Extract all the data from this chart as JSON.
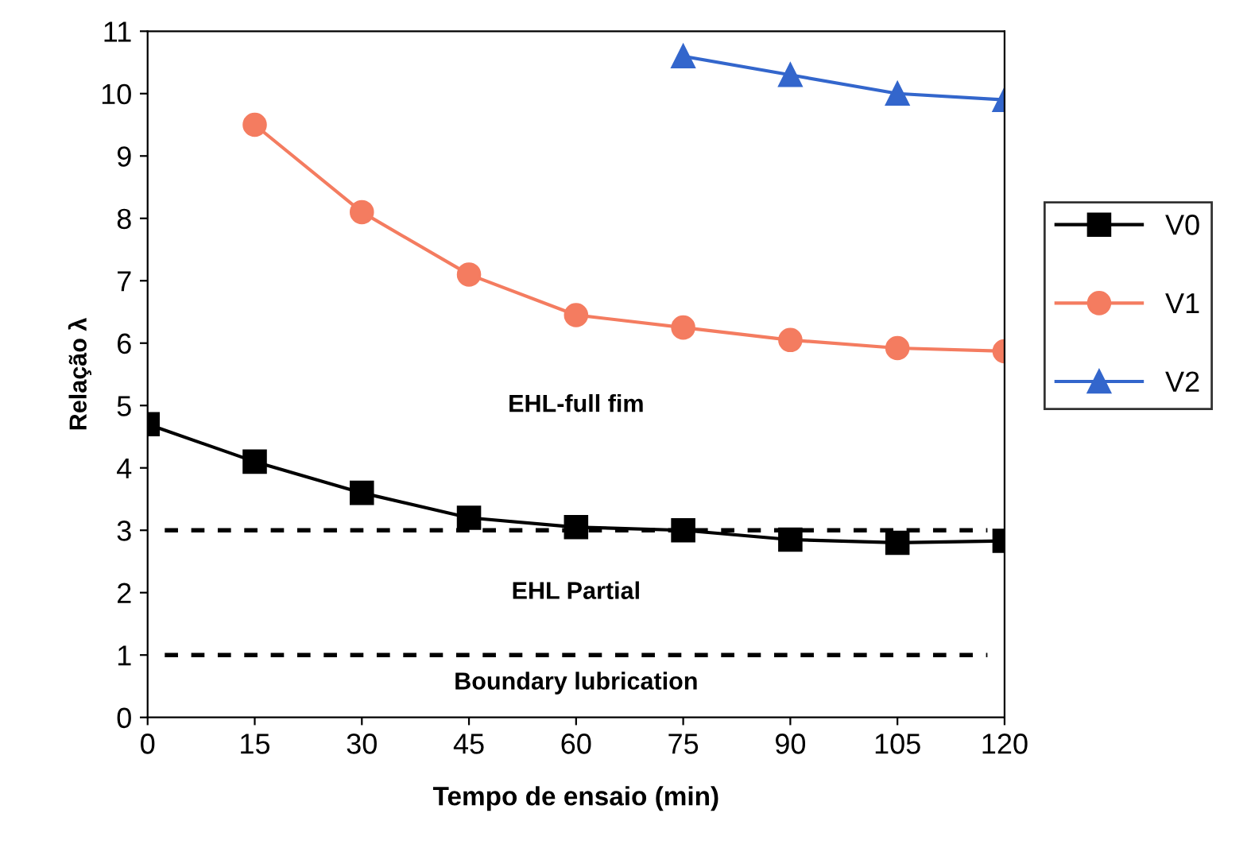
{
  "chart_data": {
    "type": "line",
    "xlabel": "Tempo de ensaio (min)",
    "ylabel": "Relação λ",
    "x": [
      0,
      15,
      30,
      45,
      60,
      75,
      90,
      105,
      120
    ],
    "series": [
      {
        "name": "V0",
        "color": "#000000",
        "marker": "square",
        "values": [
          4.7,
          4.1,
          3.6,
          3.2,
          3.05,
          3.0,
          2.85,
          2.8,
          2.83
        ]
      },
      {
        "name": "V1",
        "color": "#f47c60",
        "marker": "circle",
        "values": [
          null,
          9.5,
          8.1,
          7.1,
          6.45,
          6.25,
          6.05,
          5.92,
          5.87
        ]
      },
      {
        "name": "V2",
        "color": "#3366cc",
        "marker": "triangle",
        "values": [
          null,
          null,
          null,
          null,
          null,
          10.6,
          10.3,
          10.0,
          9.9
        ]
      }
    ],
    "xlim": [
      0,
      120
    ],
    "xticks": [
      0,
      15,
      30,
      45,
      60,
      75,
      90,
      105,
      120
    ],
    "ylim": [
      0,
      11
    ],
    "yticks": [
      0,
      1,
      2,
      3,
      4,
      5,
      6,
      7,
      8,
      9,
      10,
      11
    ],
    "ref_lines": [
      {
        "axis": "y",
        "value": 3,
        "color": "#000000",
        "line_style": "dashed"
      },
      {
        "axis": "y",
        "value": 1,
        "color": "#000000",
        "line_style": "dashed"
      }
    ],
    "annotations": [
      "EHL-full fim",
      "EHL Partial",
      "Boundary lubrication"
    ],
    "grid": false,
    "legend": "right",
    "line_style": "solid"
  }
}
